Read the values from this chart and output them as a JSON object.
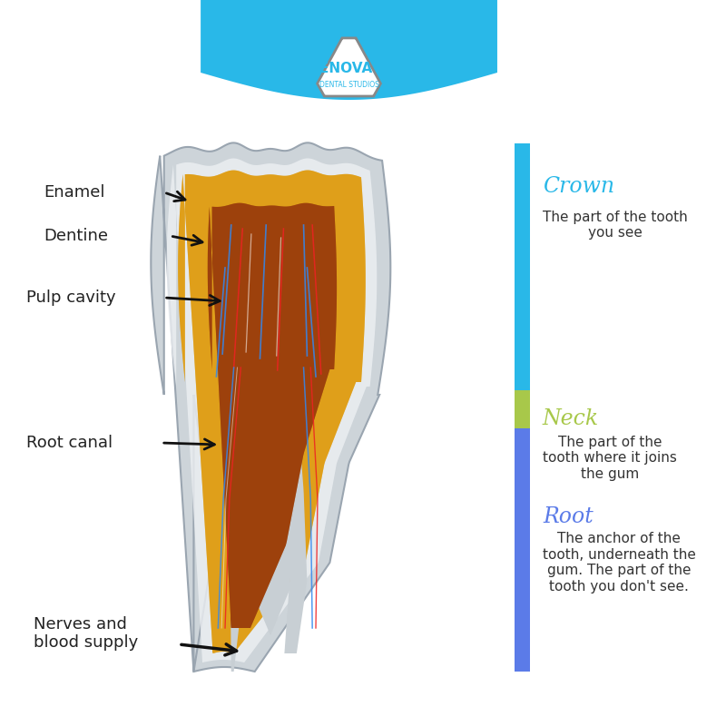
{
  "background_color": "#ffffff",
  "crown_title": "Crown",
  "crown_text": "The part of the tooth\nyou see",
  "neck_title": "Neck",
  "neck_text": "The part of the\ntooth where it joins\nthe gum",
  "root_title": "Root",
  "root_text": "The anchor of the\ntooth, underneath the\ngum. The part of the\ntooth you don't see.",
  "crown_color": "#29b8e8",
  "neck_color": "#a8c84a",
  "root_color": "#5b7be8",
  "label_enamel": "Enamel",
  "label_dentine": "Dentine",
  "label_pulp": "Pulp cavity",
  "label_root_canal": "Root canal",
  "label_nerves": "Nerves and\nblood supply",
  "label_color": "#222222",
  "arrow_color": "#111111",
  "senova_color": "#29b8e8",
  "figsize": [
    8.0,
    8.0
  ],
  "dpi": 100
}
